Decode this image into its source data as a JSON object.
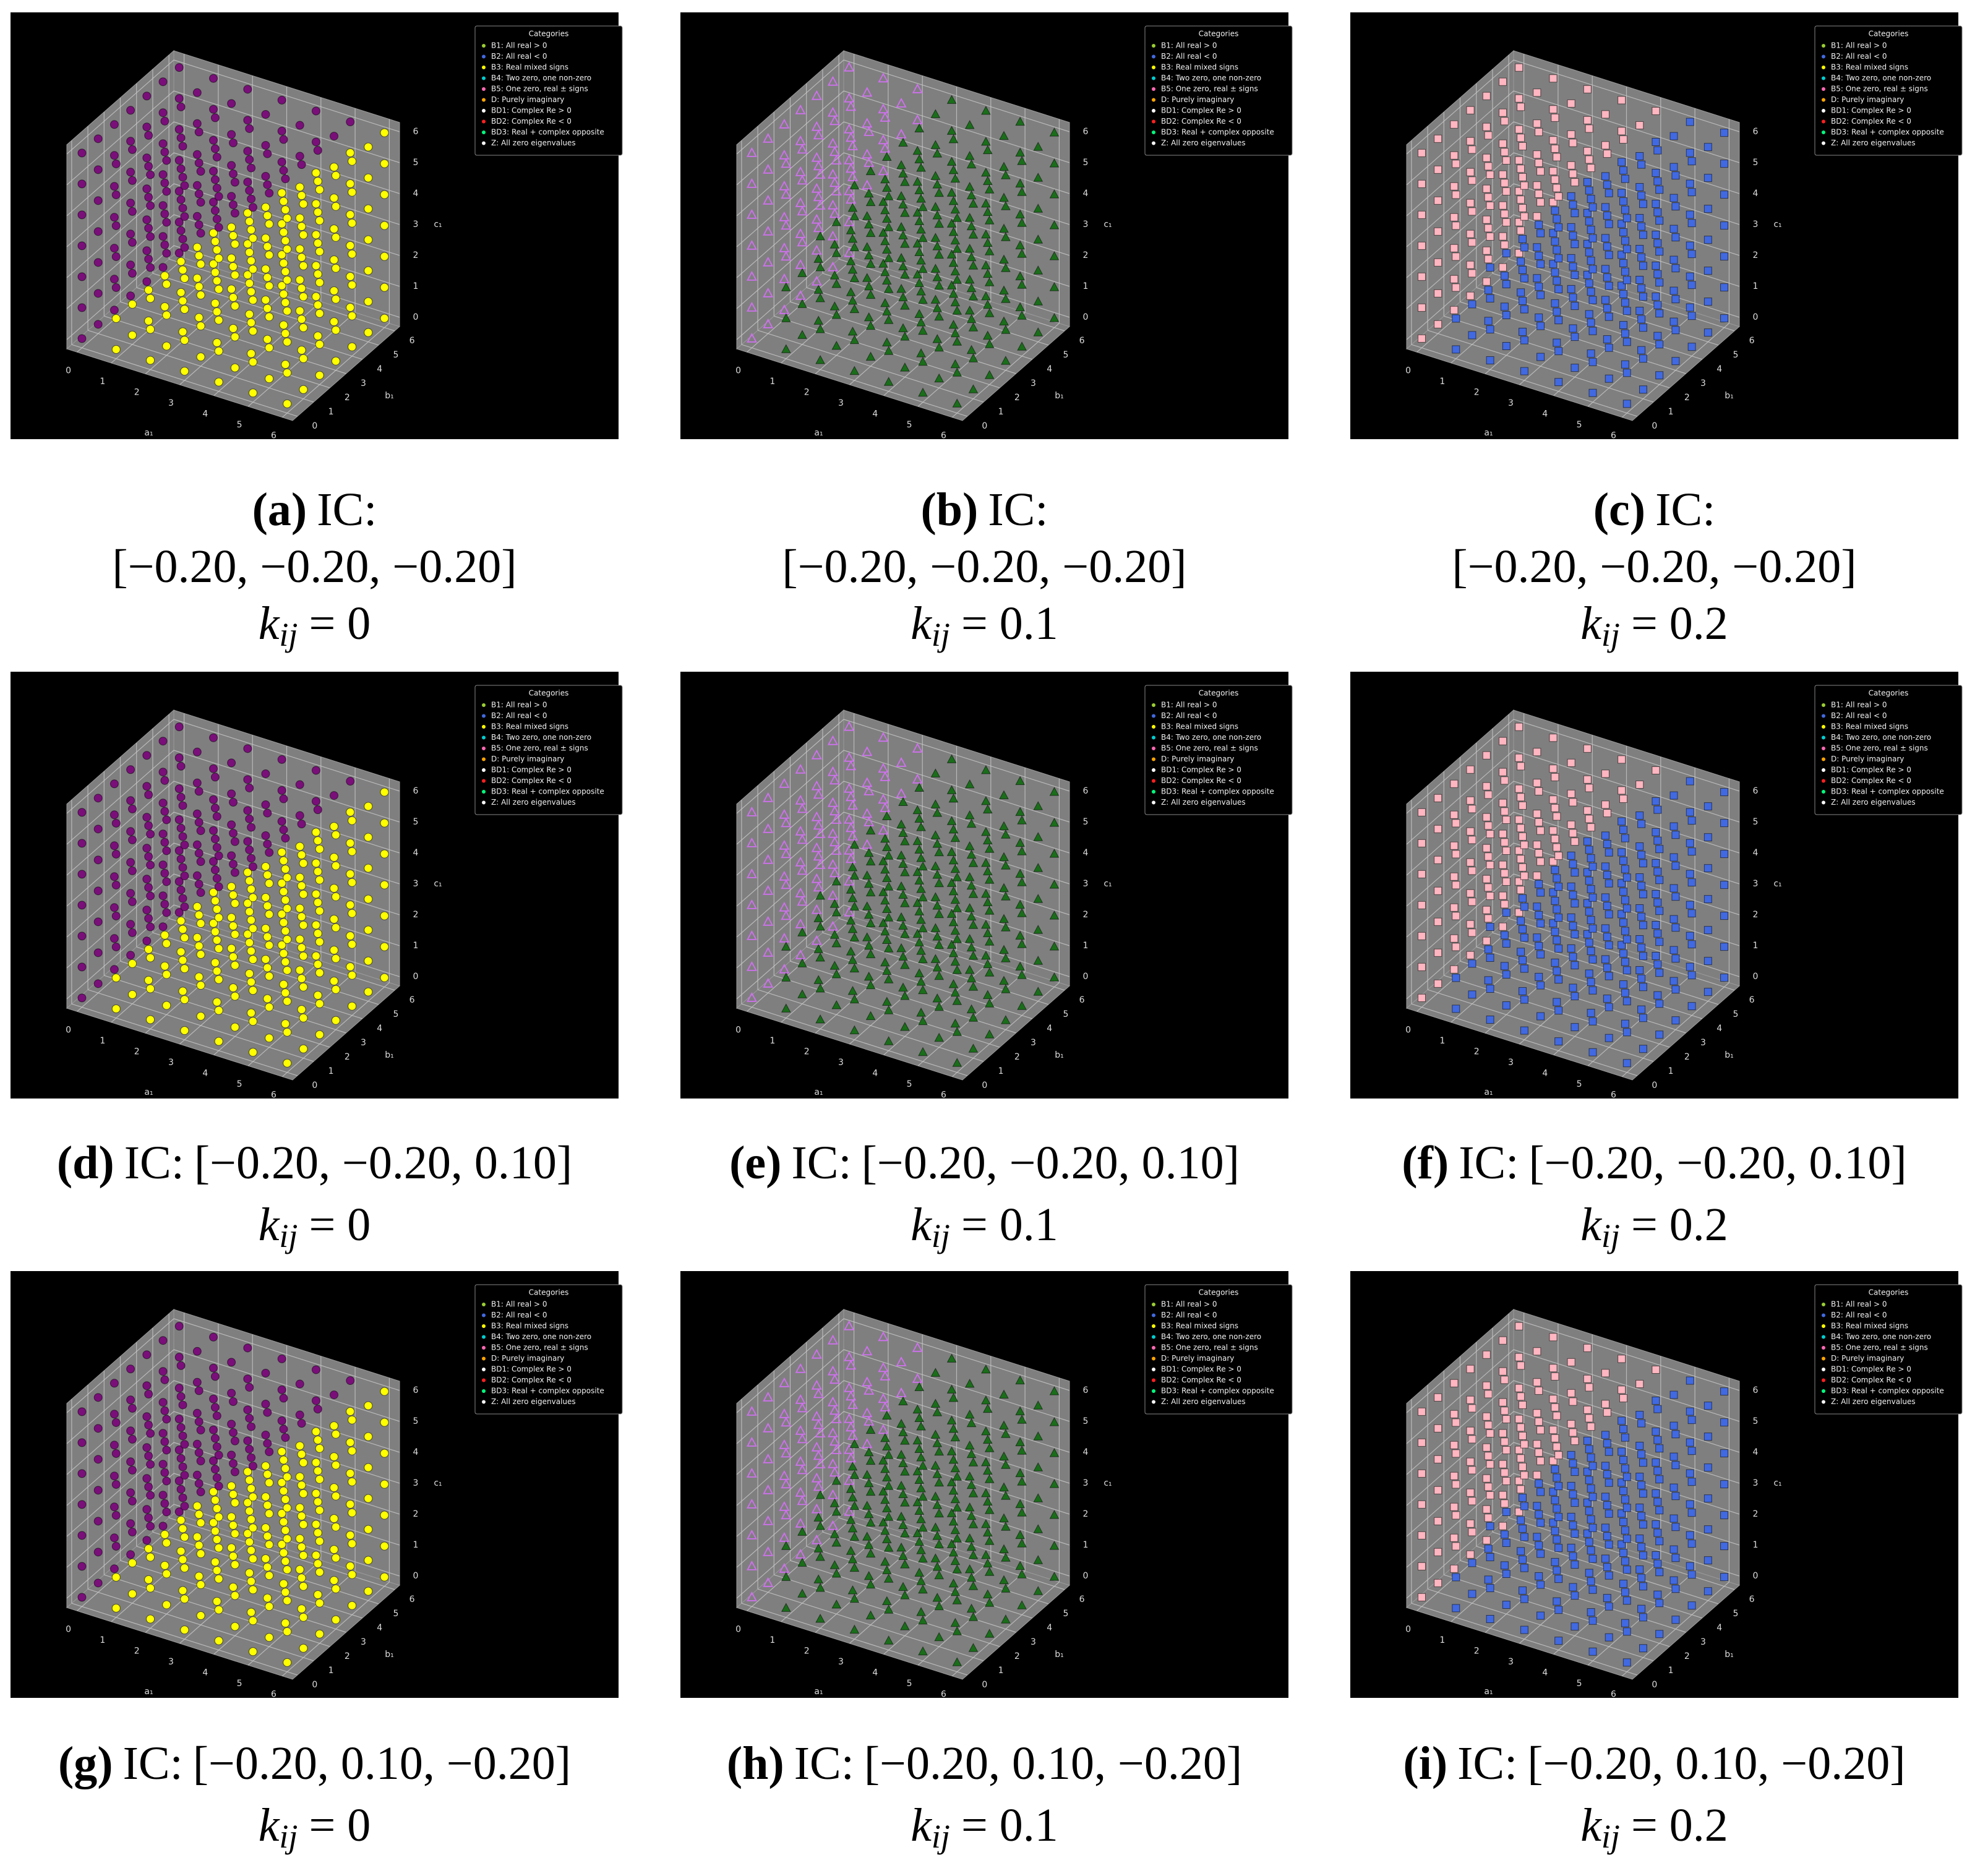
{
  "legend": {
    "title": "Categories",
    "entries": [
      {
        "label": "B1: All real > 0",
        "color": "#9acd32"
      },
      {
        "label": "B2: All real < 0",
        "color": "#4169e1"
      },
      {
        "label": "B3: Real mixed signs",
        "color": "#ffff00"
      },
      {
        "label": "B4: Two zero, one non-zero",
        "color": "#00ced1"
      },
      {
        "label": "B5: One zero, real ± signs",
        "color": "#ff69b4"
      },
      {
        "label": "D: Purely imaginary",
        "color": "#ffa500"
      },
      {
        "label": "BD1: Complex Re > 0",
        "color": "#ffffff"
      },
      {
        "label": "BD2: Complex Re < 0",
        "color": "#ff2020"
      },
      {
        "label": "BD3: Real + complex opposite",
        "color": "#00ff7f"
      },
      {
        "label": "Z: All zero eigenvalues",
        "color": "#f5f5f5"
      }
    ]
  },
  "chart_data": [
    {
      "type": "scatter3d",
      "caption": {
        "letter": "(a)",
        "ic": "IC:",
        "vec": "[−0.20, −0.20, −0.20]",
        "k": "k",
        "sub": "ij",
        "eq": "= 0"
      },
      "xlabel": "a₁",
      "ylabel": "b₁",
      "zlabel": "c₁",
      "xlim": [
        -0.3,
        6.3
      ],
      "ylim": [
        -0.3,
        6.3
      ],
      "zlim": [
        -0.3,
        6.3
      ],
      "xticks": [
        0,
        1,
        2,
        3,
        4,
        5,
        6
      ],
      "yticks": [
        0,
        1,
        2,
        3,
        4,
        5,
        6
      ],
      "zticks": [
        0,
        1,
        2,
        3,
        4,
        5,
        6
      ],
      "levels": [
        0,
        1,
        2,
        3,
        4,
        5,
        6
      ],
      "split": [
        0,
        2,
        3,
        4,
        5,
        6,
        7
      ],
      "series": [
        {
          "color": "#7a0f7a",
          "marker": "circle",
          "filled": true
        },
        {
          "color": "#ffff00",
          "marker": "circle",
          "filled": true
        }
      ]
    },
    {
      "type": "scatter3d",
      "caption": {
        "letter": "(b)",
        "ic": "IC:",
        "vec": "[−0.20, −0.20, −0.20]",
        "k": "k",
        "sub": "ij",
        "eq": "= 0.1"
      },
      "xlabel": "a₁",
      "ylabel": "b₁",
      "zlabel": "c₁",
      "xlim": [
        -0.3,
        6.3
      ],
      "ylim": [
        -0.3,
        6.3
      ],
      "zlim": [
        -0.3,
        6.3
      ],
      "xticks": [
        0,
        1,
        2,
        3,
        4,
        5,
        6
      ],
      "yticks": [
        0,
        1,
        2,
        3,
        4,
        5,
        6
      ],
      "zticks": [
        0,
        1,
        2,
        3,
        4,
        5,
        6
      ],
      "levels": [
        0,
        1,
        2,
        3,
        4,
        5,
        6
      ],
      "split": [
        0,
        3,
        5,
        7,
        7,
        7,
        7
      ],
      "series": [
        {
          "color": "#d070f0",
          "marker": "triangle",
          "filled": false
        },
        {
          "color": "#1a6e1a",
          "marker": "triangle",
          "filled": true
        }
      ]
    },
    {
      "type": "scatter3d",
      "caption": {
        "letter": "(c)",
        "ic": "IC:",
        "vec": "[−0.20, −0.20, −0.20]",
        "k": "k",
        "sub": "ij",
        "eq": "= 0.2"
      },
      "xlabel": "a₁",
      "ylabel": "b₁",
      "zlabel": "c₁",
      "xlim": [
        -0.3,
        6.3
      ],
      "ylim": [
        -0.3,
        6.3
      ],
      "zlim": [
        -0.3,
        6.3
      ],
      "xticks": [
        0,
        1,
        2,
        3,
        4,
        5,
        6
      ],
      "yticks": [
        0,
        1,
        2,
        3,
        4,
        5,
        6
      ],
      "zticks": [
        0,
        1,
        2,
        3,
        4,
        5,
        6
      ],
      "levels": [
        0,
        1,
        2,
        3,
        4,
        5,
        6
      ],
      "split": [
        0,
        2,
        4,
        5,
        6,
        7,
        7
      ],
      "series": [
        {
          "color": "#ffb6c1",
          "marker": "square",
          "filled": true
        },
        {
          "color": "#4169e1",
          "marker": "square",
          "filled": true
        }
      ]
    },
    {
      "type": "scatter3d",
      "caption": {
        "letter": "(d)",
        "ic": "IC:",
        "vec": "[−0.20, −0.20, 0.10]",
        "k": "k",
        "sub": "ij",
        "eq": "= 0"
      },
      "xlabel": "a₁",
      "ylabel": "b₁",
      "zlabel": "c₁",
      "xlim": [
        -0.3,
        6.3
      ],
      "ylim": [
        -0.3,
        6.3
      ],
      "zlim": [
        -0.3,
        6.3
      ],
      "xticks": [
        0,
        1,
        2,
        3,
        4,
        5,
        6
      ],
      "yticks": [
        0,
        1,
        2,
        3,
        4,
        5,
        6
      ],
      "zticks": [
        0,
        1,
        2,
        3,
        4,
        5,
        6
      ],
      "levels": [
        0,
        1,
        2,
        3,
        4,
        5,
        6
      ],
      "split": [
        0,
        2,
        3,
        4,
        5,
        6,
        7
      ],
      "series": [
        {
          "color": "#7a0f7a",
          "marker": "circle",
          "filled": true
        },
        {
          "color": "#ffff00",
          "marker": "circle",
          "filled": true
        }
      ]
    },
    {
      "type": "scatter3d",
      "caption": {
        "letter": "(e)",
        "ic": "IC:",
        "vec": "[−0.20, −0.20, 0.10]",
        "k": "k",
        "sub": "ij",
        "eq": "= 0.1"
      },
      "xlabel": "a₁",
      "ylabel": "b₁",
      "zlabel": "c₁",
      "xlim": [
        -0.3,
        6.3
      ],
      "ylim": [
        -0.3,
        6.3
      ],
      "zlim": [
        -0.3,
        6.3
      ],
      "xticks": [
        0,
        1,
        2,
        3,
        4,
        5,
        6
      ],
      "yticks": [
        0,
        1,
        2,
        3,
        4,
        5,
        6
      ],
      "zticks": [
        0,
        1,
        2,
        3,
        4,
        5,
        6
      ],
      "levels": [
        0,
        1,
        2,
        3,
        4,
        5,
        6
      ],
      "split": [
        0,
        3,
        5,
        7,
        7,
        7,
        7
      ],
      "series": [
        {
          "color": "#d070f0",
          "marker": "triangle",
          "filled": false
        },
        {
          "color": "#1a6e1a",
          "marker": "triangle",
          "filled": true
        }
      ]
    },
    {
      "type": "scatter3d",
      "caption": {
        "letter": "(f)",
        "ic": "IC:",
        "vec": "[−0.20, −0.20, 0.10]",
        "k": "k",
        "sub": "ij",
        "eq": "= 0.2"
      },
      "xlabel": "a₁",
      "ylabel": "b₁",
      "zlabel": "c₁",
      "xlim": [
        -0.3,
        6.3
      ],
      "ylim": [
        -0.3,
        6.3
      ],
      "zlim": [
        -0.3,
        6.3
      ],
      "xticks": [
        0,
        1,
        2,
        3,
        4,
        5,
        6
      ],
      "yticks": [
        0,
        1,
        2,
        3,
        4,
        5,
        6
      ],
      "zticks": [
        0,
        1,
        2,
        3,
        4,
        5,
        6
      ],
      "levels": [
        0,
        1,
        2,
        3,
        4,
        5,
        6
      ],
      "split": [
        0,
        2,
        4,
        5,
        6,
        7,
        7
      ],
      "series": [
        {
          "color": "#ffb6c1",
          "marker": "square",
          "filled": true
        },
        {
          "color": "#4169e1",
          "marker": "square",
          "filled": true
        }
      ]
    },
    {
      "type": "scatter3d",
      "caption": {
        "letter": "(g)",
        "ic": "IC:",
        "vec": "[−0.20, 0.10, −0.20]",
        "k": "k",
        "sub": "ij",
        "eq": "= 0"
      },
      "xlabel": "a₁",
      "ylabel": "b₁",
      "zlabel": "c₁",
      "xlim": [
        -0.3,
        6.3
      ],
      "ylim": [
        -0.3,
        6.3
      ],
      "zlim": [
        -0.3,
        6.3
      ],
      "xticks": [
        0,
        1,
        2,
        3,
        4,
        5,
        6
      ],
      "yticks": [
        0,
        1,
        2,
        3,
        4,
        5,
        6
      ],
      "zticks": [
        0,
        1,
        2,
        3,
        4,
        5,
        6
      ],
      "levels": [
        0,
        1,
        2,
        3,
        4,
        5,
        6
      ],
      "split": [
        0,
        2,
        3,
        4,
        5,
        6,
        7
      ],
      "series": [
        {
          "color": "#7a0f7a",
          "marker": "circle",
          "filled": true
        },
        {
          "color": "#ffff00",
          "marker": "circle",
          "filled": true
        }
      ]
    },
    {
      "type": "scatter3d",
      "caption": {
        "letter": "(h)",
        "ic": "IC:",
        "vec": "[−0.20, 0.10, −0.20]",
        "k": "k",
        "sub": "ij",
        "eq": "= 0.1"
      },
      "xlabel": "a₁",
      "ylabel": "b₁",
      "zlabel": "c₁",
      "xlim": [
        -0.3,
        6.3
      ],
      "ylim": [
        -0.3,
        6.3
      ],
      "zlim": [
        -0.3,
        6.3
      ],
      "xticks": [
        0,
        1,
        2,
        3,
        4,
        5,
        6
      ],
      "yticks": [
        0,
        1,
        2,
        3,
        4,
        5,
        6
      ],
      "zticks": [
        0,
        1,
        2,
        3,
        4,
        5,
        6
      ],
      "levels": [
        0,
        1,
        2,
        3,
        4,
        5,
        6
      ],
      "split": [
        0,
        3,
        5,
        7,
        7,
        7,
        7
      ],
      "series": [
        {
          "color": "#d070f0",
          "marker": "triangle",
          "filled": false
        },
        {
          "color": "#1a6e1a",
          "marker": "triangle",
          "filled": true
        }
      ]
    },
    {
      "type": "scatter3d",
      "caption": {
        "letter": "(i)",
        "ic": "IC:",
        "vec": "[−0.20, 0.10, −0.20]",
        "k": "k",
        "sub": "ij",
        "eq": "= 0.2"
      },
      "xlabel": "a₁",
      "ylabel": "b₁",
      "zlabel": "c₁",
      "xlim": [
        -0.3,
        6.3
      ],
      "ylim": [
        -0.3,
        6.3
      ],
      "zlim": [
        -0.3,
        6.3
      ],
      "xticks": [
        0,
        1,
        2,
        3,
        4,
        5,
        6
      ],
      "yticks": [
        0,
        1,
        2,
        3,
        4,
        5,
        6
      ],
      "zticks": [
        0,
        1,
        2,
        3,
        4,
        5,
        6
      ],
      "levels": [
        0,
        1,
        2,
        3,
        4,
        5,
        6
      ],
      "split": [
        0,
        2,
        4,
        5,
        6,
        7,
        7
      ],
      "series": [
        {
          "color": "#ffb6c1",
          "marker": "square",
          "filled": true
        },
        {
          "color": "#4169e1",
          "marker": "square",
          "filled": true
        }
      ]
    }
  ]
}
